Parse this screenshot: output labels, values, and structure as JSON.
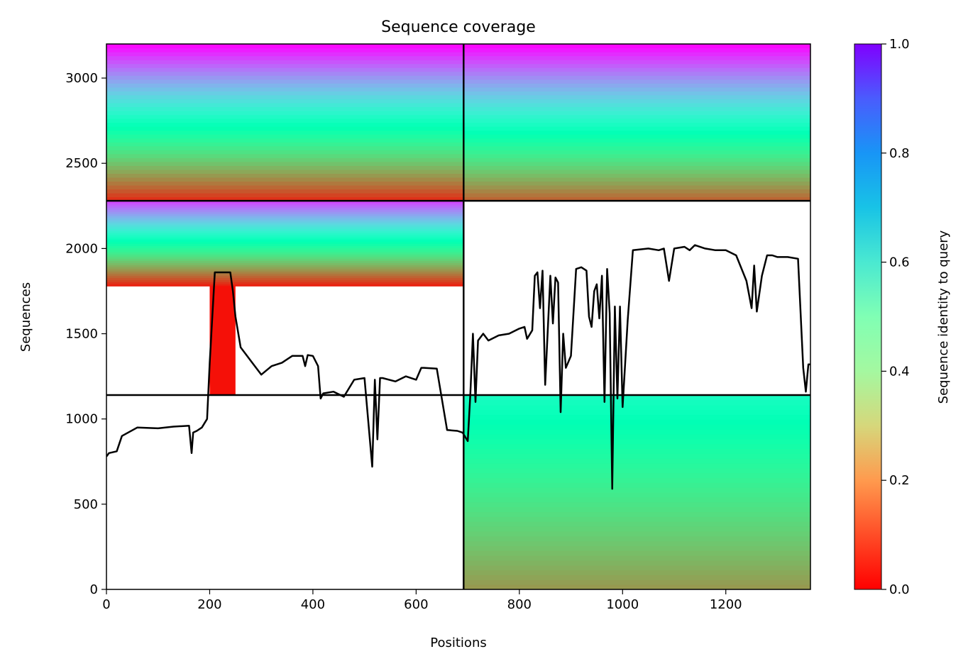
{
  "chart_data": {
    "type": "heatmap",
    "title": "Sequence coverage",
    "xlabel": "Positions",
    "ylabel": "Sequences",
    "xlim": [
      0,
      1364
    ],
    "ylim": [
      0,
      3200
    ],
    "xticks": [
      0,
      200,
      400,
      600,
      800,
      1000,
      1200
    ],
    "yticks": [
      0,
      500,
      1000,
      1500,
      2000,
      2500,
      3000
    ],
    "grid": false,
    "colormap": "rainbow_r",
    "colors": {
      "low": "#ff0000",
      "mid": "#80ffb4",
      "high": "#8000ff",
      "coverage_line": "#000000"
    },
    "colorbar": {
      "label": "Sequence identity to query",
      "range": [
        0,
        1
      ],
      "ticks": [
        "0.0",
        "0.2",
        "0.4",
        "0.6",
        "0.8",
        "1.0"
      ]
    },
    "separators": {
      "x": 692,
      "y": [
        1140,
        2280
      ]
    },
    "coverage_series": {
      "name": "",
      "x": [
        0,
        5,
        20,
        30,
        60,
        100,
        130,
        160,
        165,
        168,
        175,
        185,
        195,
        200,
        210,
        215,
        240,
        245,
        250,
        260,
        280,
        300,
        320,
        340,
        360,
        380,
        385,
        390,
        400,
        410,
        415,
        420,
        440,
        460,
        480,
        500,
        515,
        520,
        525,
        530,
        535,
        560,
        580,
        600,
        610,
        615,
        640,
        660,
        680,
        690,
        700,
        705,
        710,
        715,
        720,
        730,
        740,
        760,
        780,
        800,
        810,
        815,
        825,
        830,
        835,
        840,
        845,
        850,
        860,
        865,
        870,
        875,
        880,
        885,
        890,
        900,
        910,
        920,
        930,
        935,
        940,
        945,
        950,
        955,
        960,
        965,
        970,
        975,
        980,
        985,
        990,
        995,
        1000,
        1010,
        1020,
        1050,
        1070,
        1080,
        1090,
        1100,
        1120,
        1130,
        1140,
        1160,
        1180,
        1200,
        1220,
        1240,
        1250,
        1255,
        1260,
        1270,
        1280,
        1290,
        1300,
        1320,
        1340,
        1350,
        1355,
        1360,
        1364
      ],
      "y": [
        780,
        800,
        810,
        900,
        950,
        945,
        955,
        960,
        800,
        920,
        930,
        950,
        1000,
        1330,
        1860,
        1860,
        1860,
        1750,
        1600,
        1420,
        1340,
        1260,
        1310,
        1330,
        1370,
        1370,
        1310,
        1375,
        1370,
        1310,
        1120,
        1150,
        1160,
        1130,
        1230,
        1240,
        720,
        1230,
        880,
        1240,
        1240,
        1220,
        1250,
        1230,
        1300,
        1300,
        1295,
        935,
        930,
        920,
        870,
        1140,
        1500,
        1100,
        1460,
        1500,
        1460,
        1490,
        1500,
        1530,
        1540,
        1470,
        1520,
        1840,
        1860,
        1650,
        1870,
        1200,
        1840,
        1560,
        1830,
        1800,
        1040,
        1500,
        1300,
        1370,
        1880,
        1890,
        1870,
        1600,
        1540,
        1750,
        1790,
        1590,
        1840,
        1100,
        1880,
        1620,
        590,
        1660,
        1120,
        1660,
        1070,
        1580,
        1990,
        2000,
        1990,
        2000,
        1810,
        2000,
        2010,
        1990,
        2020,
        2000,
        1990,
        1990,
        1960,
        1810,
        1650,
        1900,
        1630,
        1840,
        1960,
        1960,
        1950,
        1950,
        1940,
        1300,
        1160,
        1320,
        1320
      ]
    }
  }
}
